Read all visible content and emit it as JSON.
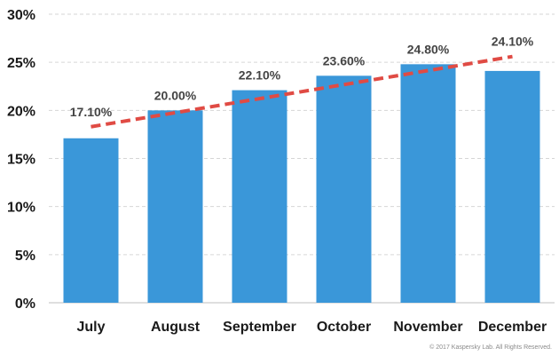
{
  "chart_data": {
    "type": "bar",
    "categories": [
      "July",
      "August",
      "September",
      "October",
      "November",
      "December"
    ],
    "values": [
      17.1,
      20.0,
      22.1,
      23.6,
      24.8,
      24.1
    ],
    "data_labels": [
      "17.10%",
      "20.00%",
      "22.10%",
      "23.60%",
      "24.80%",
      "24.10%"
    ],
    "y_ticks": [
      "0%",
      "5%",
      "10%",
      "15%",
      "20%",
      "25%",
      "30%"
    ],
    "ylim": [
      0,
      30
    ],
    "grid": true,
    "trendline": {
      "style": "dashed",
      "start_value": 18.3,
      "end_value": 25.6
    },
    "colors": {
      "bar": "#3a97d9",
      "trendline": "#e04b44"
    }
  },
  "footer": {
    "copyright": "© 2017 Kaspersky Lab. All Rights Reserved."
  }
}
